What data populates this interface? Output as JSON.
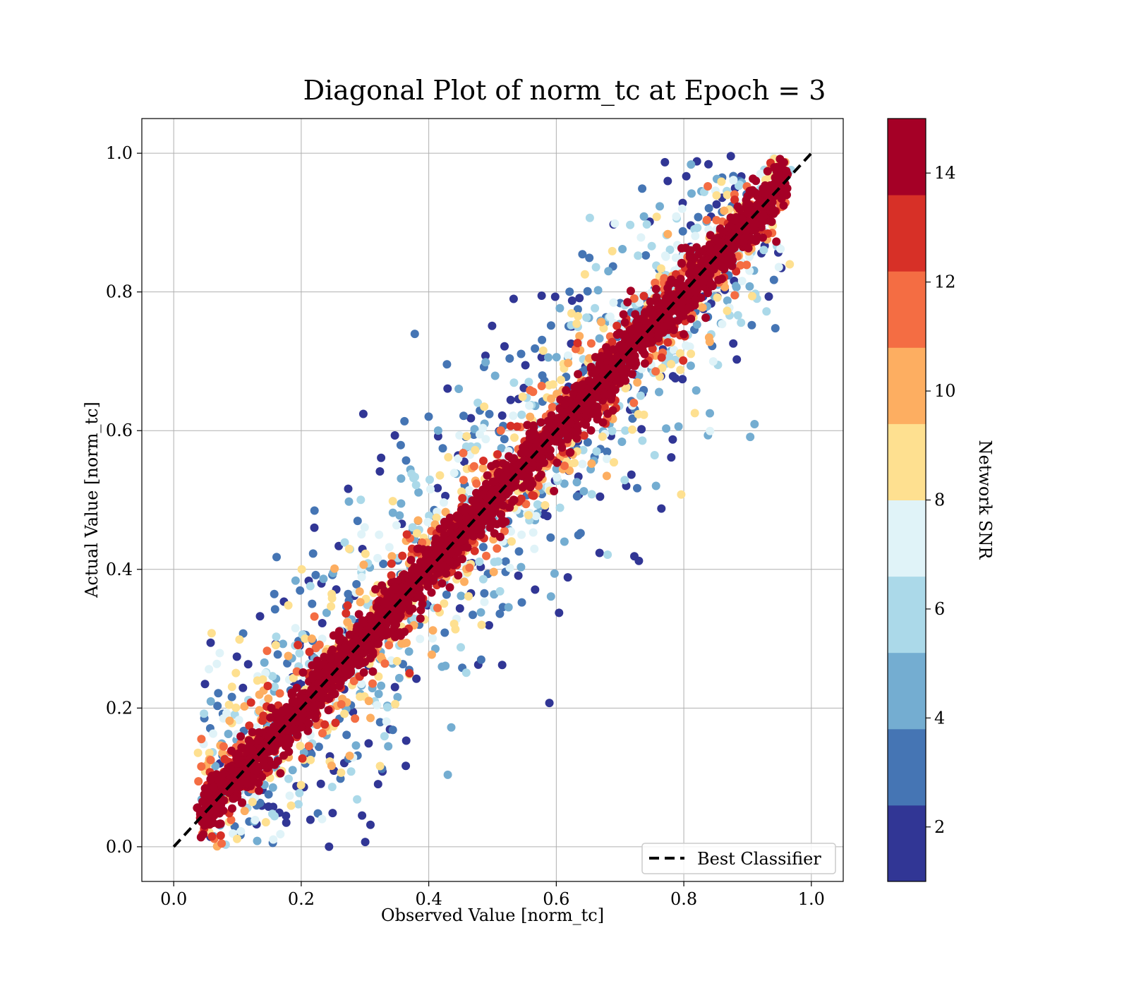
{
  "chart_data": {
    "type": "scatter",
    "title": "Diagonal Plot of norm_tc at Epoch = 3",
    "xlabel": "Observed Value [norm_tc]",
    "ylabel": "Actual Value [norm_tc]",
    "xlim": [
      -0.05,
      1.05
    ],
    "ylim": [
      -0.05,
      1.05
    ],
    "x_ticks": [
      0.0,
      0.2,
      0.4,
      0.6,
      0.8,
      1.0
    ],
    "x_tick_labels": [
      "0.0",
      "0.2",
      "0.4",
      "0.6",
      "0.8",
      "1.0"
    ],
    "y_ticks": [
      0.0,
      0.2,
      0.4,
      0.6,
      0.8,
      1.0
    ],
    "y_tick_labels": [
      "0.0",
      "0.2",
      "0.4",
      "0.6",
      "0.8",
      "1.0"
    ],
    "grid": true,
    "reference_line": {
      "label": "Best Classifier",
      "x": [
        0.0,
        1.0
      ],
      "y": [
        0.0,
        1.0
      ],
      "style": "dashed",
      "color": "#000000"
    },
    "legend": {
      "placement": "lower-right",
      "entries": [
        "Best Classifier"
      ]
    },
    "colorbar": {
      "label": "Network SNR",
      "range": [
        1,
        15
      ],
      "ticks": [
        2,
        4,
        6,
        8,
        10,
        12,
        14
      ],
      "tick_labels": [
        "2",
        "4",
        "6",
        "8",
        "10",
        "12",
        "14"
      ],
      "bins": [
        {
          "from": 1,
          "to": 2.4,
          "color": "#313695"
        },
        {
          "from": 2.4,
          "to": 3.8,
          "color": "#4575b4"
        },
        {
          "from": 3.8,
          "to": 5.2,
          "color": "#74add1"
        },
        {
          "from": 5.2,
          "to": 6.6,
          "color": "#abd9e9"
        },
        {
          "from": 6.6,
          "to": 8.0,
          "color": "#e0f3f8"
        },
        {
          "from": 8.0,
          "to": 9.4,
          "color": "#fee090"
        },
        {
          "from": 9.4,
          "to": 10.8,
          "color": "#fdae61"
        },
        {
          "from": 10.8,
          "to": 12.2,
          "color": "#f46d43"
        },
        {
          "from": 12.2,
          "to": 13.6,
          "color": "#d73027"
        },
        {
          "from": 13.6,
          "to": 15.0,
          "color": "#a50026"
        }
      ]
    },
    "point_cloud": {
      "description_bands": [
        {
          "snr_min": 13.6,
          "max_abs_offset": 0.12
        },
        {
          "snr_min": 10.8,
          "max_abs_offset": 0.2
        },
        {
          "snr_min": 8.0,
          "max_abs_offset": 0.3
        },
        {
          "snr_min": 5.2,
          "max_abs_offset": 0.38
        },
        {
          "snr_min": 1.0,
          "max_abs_offset": 0.45
        }
      ],
      "x_range": [
        0.03,
        0.98
      ],
      "y_range": [
        0.0,
        1.0
      ]
    }
  }
}
